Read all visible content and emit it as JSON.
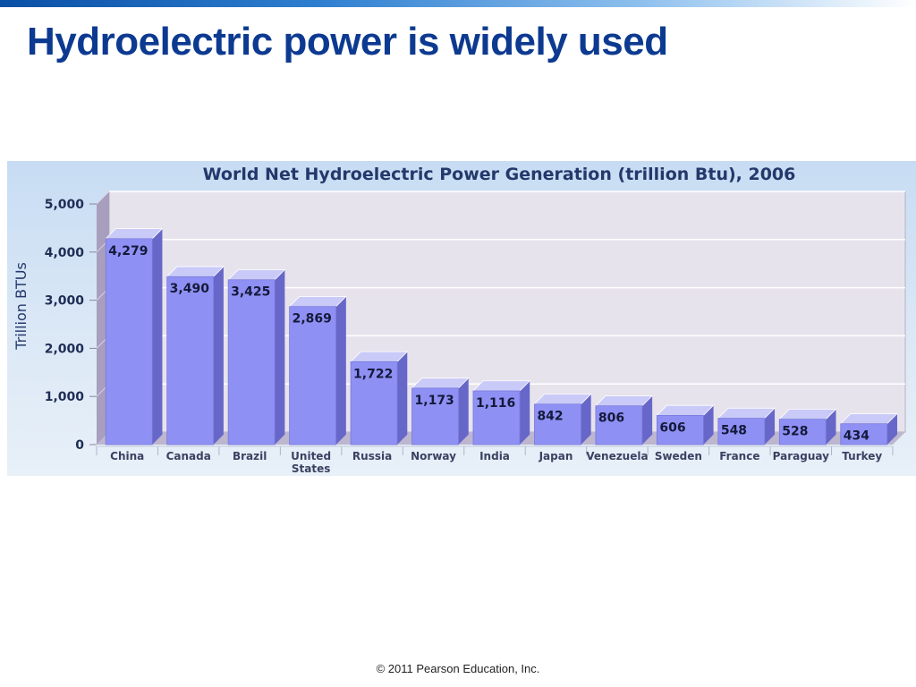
{
  "slide": {
    "title": "Hydroelectric power is widely used",
    "footer": "© 2011 Pearson Education, Inc."
  },
  "colors": {
    "title": "#0d3a91",
    "bar_front": "#8f90f4",
    "bar_top": "#c9caf8",
    "bar_side": "#6767c9",
    "plot_back": "#e7e3ec"
  },
  "chart_data": {
    "type": "bar",
    "title": "World Net Hydroelectric Power Generation (trillion Btu), 2006",
    "ylabel": "Trillion BTUs",
    "xlabel": "",
    "ylim": [
      0,
      5000
    ],
    "yticks": [
      "0",
      "1,000",
      "2,000",
      "3,000",
      "4,000",
      "5,000"
    ],
    "categories": [
      "China",
      "Canada",
      "Brazil",
      "United States",
      "Russia",
      "Norway",
      "India",
      "Japan",
      "Venezuela",
      "Sweden",
      "France",
      "Paraguay",
      "Turkey"
    ],
    "category_lines": [
      [
        "China"
      ],
      [
        "Canada"
      ],
      [
        "Brazil"
      ],
      [
        "United",
        "States"
      ],
      [
        "Russia"
      ],
      [
        "Norway"
      ],
      [
        "India"
      ],
      [
        "Japan"
      ],
      [
        "Venezuela"
      ],
      [
        "Sweden"
      ],
      [
        "France"
      ],
      [
        "Paraguay"
      ],
      [
        "Turkey"
      ]
    ],
    "values": [
      4279,
      3490,
      3425,
      2869,
      1722,
      1173,
      1116,
      842,
      806,
      606,
      548,
      528,
      434
    ],
    "value_labels": [
      "4,279",
      "3,490",
      "3,425",
      "2,869",
      "1,722",
      "1,173",
      "1,116",
      "842",
      "806",
      "606",
      "548",
      "528",
      "434"
    ],
    "grid": true
  }
}
